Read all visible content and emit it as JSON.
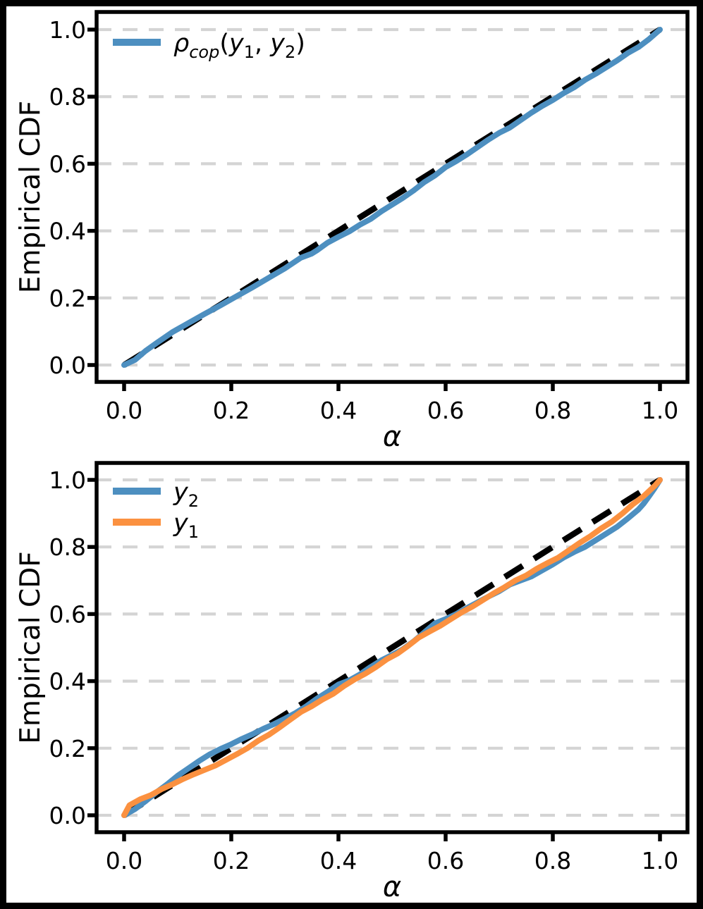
{
  "figure": {
    "background": "#ffffff",
    "border_color": "#000000",
    "grid_color": "#d4d4d4",
    "axis_color": "#000000"
  },
  "chart_data": [
    {
      "type": "line",
      "title": "",
      "xlabel": "α",
      "ylabel": "Empirical CDF",
      "xlim": [
        0,
        1
      ],
      "ylim": [
        0,
        1
      ],
      "xticks": [
        "0.0",
        "0.2",
        "0.4",
        "0.6",
        "0.8",
        "1.0"
      ],
      "yticks": [
        "0.0",
        "0.2",
        "0.4",
        "0.6",
        "0.8",
        "1.0"
      ],
      "xtick_values": [
        0,
        0.2,
        0.4,
        0.6,
        0.8,
        1.0
      ],
      "ytick_values": [
        0,
        0.2,
        0.4,
        0.6,
        0.8,
        1.0
      ],
      "grid": "horizontal-dashed",
      "legend_position": "upper-left",
      "reference_line": {
        "name": "y-equals-x-diagonal",
        "color": "#000000",
        "style": "dashed",
        "x": [
          0,
          1
        ],
        "y": [
          0,
          1
        ]
      },
      "series": [
        {
          "id": "rho_cop",
          "name": "rho_cop(y1, y2)",
          "color": "#4d8fc0",
          "label_parts": [
            {
              "text": "ρ",
              "style": "italic"
            },
            {
              "text": "cop",
              "style": "italic-sub"
            },
            {
              "text": "(",
              "style": "normal"
            },
            {
              "text": "y",
              "style": "italic"
            },
            {
              "text": "1",
              "style": "sub"
            },
            {
              "text": ", ",
              "style": "normal"
            },
            {
              "text": "y",
              "style": "italic"
            },
            {
              "text": "2",
              "style": "sub"
            },
            {
              "text": ")",
              "style": "normal"
            }
          ],
          "x": [
            0.0,
            0.02,
            0.04,
            0.06,
            0.09,
            0.12,
            0.15,
            0.18,
            0.21,
            0.24,
            0.27,
            0.3,
            0.33,
            0.35,
            0.36,
            0.38,
            0.4,
            0.42,
            0.44,
            0.46,
            0.48,
            0.5,
            0.52,
            0.54,
            0.56,
            0.58,
            0.6,
            0.62,
            0.64,
            0.66,
            0.68,
            0.7,
            0.72,
            0.74,
            0.76,
            0.78,
            0.8,
            0.82,
            0.84,
            0.86,
            0.88,
            0.9,
            0.92,
            0.94,
            0.96,
            0.98,
            1.0
          ],
          "y": [
            0.0,
            0.015,
            0.042,
            0.065,
            0.098,
            0.125,
            0.152,
            0.178,
            0.205,
            0.232,
            0.26,
            0.288,
            0.32,
            0.332,
            0.342,
            0.365,
            0.382,
            0.398,
            0.418,
            0.435,
            0.458,
            0.478,
            0.498,
            0.52,
            0.545,
            0.565,
            0.59,
            0.608,
            0.628,
            0.65,
            0.672,
            0.692,
            0.708,
            0.73,
            0.752,
            0.772,
            0.79,
            0.81,
            0.828,
            0.85,
            0.868,
            0.888,
            0.908,
            0.93,
            0.948,
            0.972,
            1.0
          ]
        }
      ]
    },
    {
      "type": "line",
      "title": "",
      "xlabel": "α",
      "ylabel": "Empirical CDF",
      "xlim": [
        0,
        1
      ],
      "ylim": [
        0,
        1
      ],
      "xticks": [
        "0.0",
        "0.2",
        "0.4",
        "0.6",
        "0.8",
        "1.0"
      ],
      "yticks": [
        "0.0",
        "0.2",
        "0.4",
        "0.6",
        "0.8",
        "1.0"
      ],
      "xtick_values": [
        0,
        0.2,
        0.4,
        0.6,
        0.8,
        1.0
      ],
      "ytick_values": [
        0,
        0.2,
        0.4,
        0.6,
        0.8,
        1.0
      ],
      "grid": "horizontal-dashed",
      "legend_position": "upper-left",
      "reference_line": {
        "name": "y-equals-x-diagonal",
        "color": "#000000",
        "style": "dashed",
        "x": [
          0,
          1
        ],
        "y": [
          0,
          1
        ]
      },
      "series": [
        {
          "id": "y2",
          "name": "y2",
          "color": "#4d8fc0",
          "label_parts": [
            {
              "text": "y",
              "style": "italic"
            },
            {
              "text": "2",
              "style": "sub"
            }
          ],
          "x": [
            0.0,
            0.02,
            0.04,
            0.06,
            0.08,
            0.1,
            0.12,
            0.14,
            0.16,
            0.18,
            0.2,
            0.22,
            0.24,
            0.26,
            0.28,
            0.3,
            0.32,
            0.34,
            0.36,
            0.38,
            0.4,
            0.42,
            0.44,
            0.46,
            0.48,
            0.5,
            0.52,
            0.54,
            0.56,
            0.58,
            0.6,
            0.62,
            0.64,
            0.66,
            0.68,
            0.7,
            0.72,
            0.74,
            0.76,
            0.78,
            0.8,
            0.82,
            0.84,
            0.86,
            0.88,
            0.9,
            0.92,
            0.94,
            0.96,
            0.97,
            0.98,
            0.99,
            1.0
          ],
          "y": [
            0.0,
            0.018,
            0.042,
            0.068,
            0.092,
            0.118,
            0.14,
            0.162,
            0.182,
            0.198,
            0.212,
            0.228,
            0.242,
            0.258,
            0.272,
            0.288,
            0.305,
            0.325,
            0.348,
            0.368,
            0.39,
            0.402,
            0.42,
            0.442,
            0.462,
            0.478,
            0.495,
            0.518,
            0.545,
            0.572,
            0.585,
            0.6,
            0.618,
            0.635,
            0.652,
            0.668,
            0.688,
            0.7,
            0.712,
            0.73,
            0.748,
            0.768,
            0.785,
            0.8,
            0.82,
            0.84,
            0.86,
            0.885,
            0.912,
            0.93,
            0.952,
            0.975,
            1.0
          ]
        },
        {
          "id": "y1",
          "name": "y1",
          "color": "#fb9140",
          "label_parts": [
            {
              "text": "y",
              "style": "italic"
            },
            {
              "text": "1",
              "style": "sub"
            }
          ],
          "x": [
            0.0,
            0.01,
            0.03,
            0.05,
            0.07,
            0.09,
            0.11,
            0.13,
            0.15,
            0.17,
            0.19,
            0.21,
            0.23,
            0.25,
            0.27,
            0.29,
            0.31,
            0.33,
            0.35,
            0.37,
            0.39,
            0.41,
            0.43,
            0.45,
            0.47,
            0.49,
            0.51,
            0.53,
            0.55,
            0.57,
            0.59,
            0.61,
            0.63,
            0.65,
            0.67,
            0.69,
            0.71,
            0.73,
            0.75,
            0.77,
            0.79,
            0.81,
            0.83,
            0.85,
            0.87,
            0.89,
            0.91,
            0.93,
            0.95,
            0.97,
            0.99,
            1.0
          ],
          "y": [
            0.0,
            0.03,
            0.048,
            0.06,
            0.078,
            0.092,
            0.108,
            0.122,
            0.135,
            0.148,
            0.165,
            0.182,
            0.2,
            0.222,
            0.24,
            0.262,
            0.285,
            0.308,
            0.325,
            0.345,
            0.362,
            0.385,
            0.405,
            0.422,
            0.442,
            0.465,
            0.482,
            0.505,
            0.53,
            0.548,
            0.565,
            0.585,
            0.605,
            0.622,
            0.642,
            0.662,
            0.68,
            0.7,
            0.715,
            0.735,
            0.752,
            0.768,
            0.79,
            0.812,
            0.832,
            0.855,
            0.875,
            0.9,
            0.928,
            0.952,
            0.982,
            1.0
          ]
        }
      ]
    }
  ]
}
